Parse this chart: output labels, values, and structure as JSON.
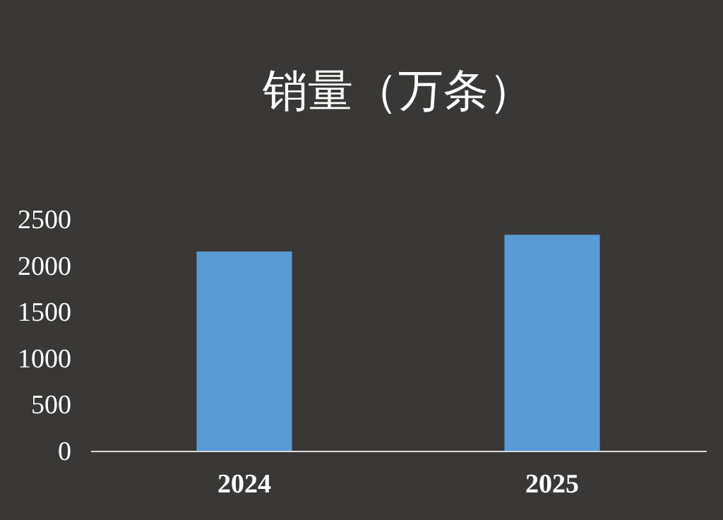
{
  "chart_data": {
    "type": "bar",
    "title": "销量（万条）",
    "categories": [
      "2024",
      "2025"
    ],
    "values": [
      2150,
      2330
    ],
    "color": "#5b9bd5",
    "ylim": [
      0,
      2500
    ],
    "yticks": [
      0,
      500,
      1000,
      1500,
      2000,
      2500
    ],
    "grid": false
  }
}
